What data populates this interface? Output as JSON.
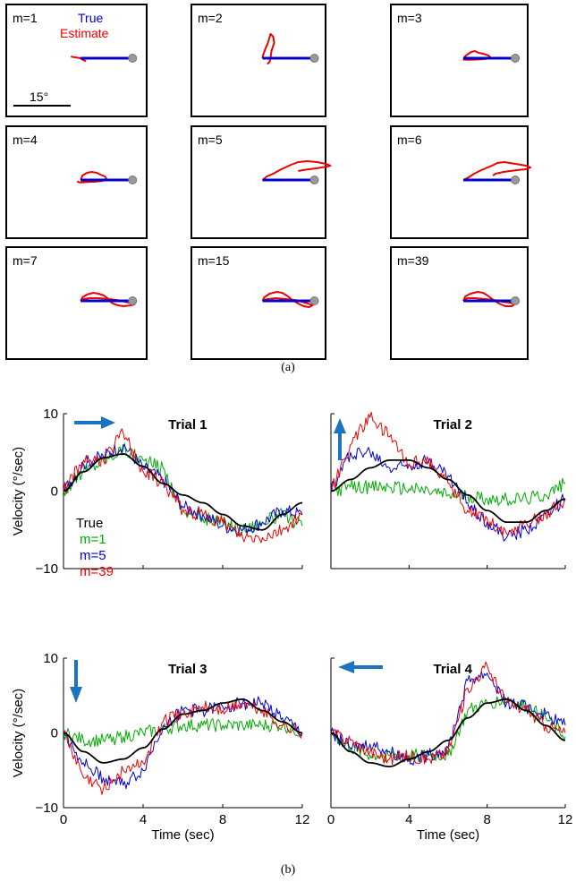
{
  "figure": {
    "caption_a": "(a)",
    "caption_b": "(b)"
  },
  "chart_data": [
    {
      "type": "line",
      "panel": "a",
      "description_legend": {
        "true_label": "True",
        "estimate_label": "Estimate"
      },
      "scale_label": "15°",
      "colors": {
        "true": "#0000cc",
        "estimate": "#ee0000",
        "marker": "#999999"
      },
      "subplots": [
        {
          "label": "m=1",
          "estimate": [
            [
              -11,
              -1.8
            ],
            [
              0,
              0
            ],
            [
              1,
              1
            ],
            [
              6,
              3.4
            ]
          ]
        },
        {
          "label": "m=2",
          "estimate": [
            [
              0,
              0
            ],
            [
              0.5,
              -3
            ],
            [
              3,
              -10
            ],
            [
              6,
              -17
            ],
            [
              9,
              -27
            ],
            [
              12,
              -24
            ],
            [
              13,
              -17
            ],
            [
              10,
              -8
            ],
            [
              9,
              -1
            ],
            [
              8,
              4
            ],
            [
              5.5,
              6.5
            ]
          ]
        },
        {
          "label": "m=3",
          "estimate": [
            [
              0,
              0
            ],
            [
              4,
              -4
            ],
            [
              9,
              -7
            ],
            [
              13,
              -8
            ],
            [
              17,
              -6
            ],
            [
              22,
              -5
            ],
            [
              28,
              -3
            ],
            [
              30,
              -1
            ],
            [
              25,
              0.8
            ],
            [
              17,
              1.4
            ],
            [
              6,
              1.8
            ],
            [
              -0.5,
              1.5
            ]
          ]
        },
        {
          "label": "m=4",
          "estimate": [
            [
              0,
              0
            ],
            [
              2,
              -5
            ],
            [
              7,
              -8
            ],
            [
              12,
              -9
            ],
            [
              18,
              -8
            ],
            [
              22,
              -6
            ],
            [
              27,
              -4
            ],
            [
              29,
              -1
            ],
            [
              26,
              0.5
            ],
            [
              22,
              1.4
            ],
            [
              14,
              2
            ],
            [
              6,
              2.4
            ],
            [
              -1,
              2.8
            ],
            [
              -4,
              1.6
            ]
          ]
        },
        {
          "label": "m=5",
          "estimate": [
            [
              0,
              0
            ],
            [
              5,
              -4
            ],
            [
              12,
              -7
            ],
            [
              21,
              -12
            ],
            [
              32,
              -17
            ],
            [
              40,
              -20
            ],
            [
              50,
              -21
            ],
            [
              61,
              -20
            ],
            [
              71,
              -18
            ],
            [
              76,
              -16
            ],
            [
              72,
              -15
            ],
            [
              60,
              -13
            ],
            [
              52,
              -12
            ],
            [
              45,
              -11
            ],
            [
              40,
              -10
            ]
          ]
        },
        {
          "label": "m=6",
          "estimate": [
            [
              0,
              0
            ],
            [
              6,
              -3
            ],
            [
              12,
              -7
            ],
            [
              20,
              -11
            ],
            [
              32,
              -16
            ],
            [
              38,
              -19
            ],
            [
              46,
              -20
            ],
            [
              58,
              -18
            ],
            [
              70,
              -16
            ],
            [
              75,
              -14
            ],
            [
              70,
              -12
            ],
            [
              60,
              -11
            ],
            [
              52,
              -10
            ],
            [
              45,
              -9
            ],
            [
              36,
              -7
            ],
            [
              33,
              -5
            ]
          ]
        },
        {
          "label": "m=7",
          "estimate": [
            [
              0,
              0
            ],
            [
              2,
              -4
            ],
            [
              7,
              -7
            ],
            [
              14,
              -9
            ],
            [
              20,
              -8
            ],
            [
              26,
              -6
            ],
            [
              30,
              -3
            ],
            [
              32,
              0
            ],
            [
              36,
              3
            ],
            [
              42,
              5
            ],
            [
              48,
              6
            ],
            [
              56,
              5
            ],
            [
              60,
              4
            ],
            [
              54,
              2
            ],
            [
              48,
              0.5
            ],
            [
              40,
              -1
            ],
            [
              32,
              -2
            ],
            [
              20,
              -3
            ],
            [
              10,
              -3
            ],
            [
              3,
              -2
            ],
            [
              0,
              0
            ]
          ]
        },
        {
          "label": "m=15",
          "estimate": [
            [
              0,
              0
            ],
            [
              2,
              -4
            ],
            [
              8,
              -8
            ],
            [
              16,
              -10
            ],
            [
              22,
              -9
            ],
            [
              27,
              -6
            ],
            [
              31,
              -3
            ],
            [
              35,
              0
            ],
            [
              40,
              3
            ],
            [
              46,
              6
            ],
            [
              52,
              7
            ],
            [
              56,
              5
            ],
            [
              51,
              3
            ],
            [
              44,
              1
            ],
            [
              36,
              -1
            ],
            [
              26,
              -2
            ],
            [
              15,
              -3
            ],
            [
              6,
              -2
            ],
            [
              1,
              -1
            ]
          ]
        },
        {
          "label": "m=39",
          "estimate": [
            [
              0,
              0
            ],
            [
              2,
              -5
            ],
            [
              8,
              -8
            ],
            [
              16,
              -10
            ],
            [
              22,
              -9
            ],
            [
              27,
              -6
            ],
            [
              31,
              -3
            ],
            [
              35,
              0
            ],
            [
              40,
              3
            ],
            [
              47,
              6
            ],
            [
              54,
              6
            ],
            [
              57,
              4
            ],
            [
              52,
              2
            ],
            [
              44,
              1
            ],
            [
              34,
              -1
            ],
            [
              24,
              -2
            ],
            [
              13,
              -3
            ],
            [
              5,
              -3
            ],
            [
              1,
              -2
            ]
          ]
        }
      ]
    },
    {
      "type": "line",
      "panel": "b",
      "ylabel": "Velocity  (°/sec)",
      "xlabel": "Time (sec)",
      "xlim": [
        0,
        12
      ],
      "ylim": [
        -10,
        10
      ],
      "xticks": [
        "0",
        "4",
        "8",
        "12"
      ],
      "yticks": [
        "10",
        "0",
        "−10"
      ],
      "legend": [
        {
          "name": "True",
          "color": "#000000"
        },
        {
          "name": "m=1",
          "color": "#00aa00"
        },
        {
          "name": "m=5",
          "color": "#0000dd"
        },
        {
          "name": "m=39",
          "color": "#ee0000"
        }
      ],
      "colors": {
        "arrow": "#1b73c4"
      },
      "subplots": [
        {
          "title": "Trial 1",
          "arrow": "right",
          "x": [
            0,
            1,
            2,
            3,
            4,
            5,
            6,
            7,
            8,
            9,
            10,
            11,
            12
          ],
          "series": [
            {
              "name": "True",
              "values": [
                0,
                2.5,
                4.3,
                4.8,
                3.2,
                1,
                -0.5,
                -1.5,
                -3,
                -4.5,
                -5,
                -3,
                -1.5
              ]
            },
            {
              "name": "m=1",
              "values": [
                0,
                2.5,
                4,
                5.5,
                4,
                3,
                -2.5,
                -3.5,
                -4,
                -5,
                -4,
                -3,
                -4.5
              ]
            },
            {
              "name": "m=5",
              "values": [
                0,
                3.5,
                4.5,
                6,
                3,
                1.5,
                -2,
                -3,
                -4.5,
                -5,
                -4,
                -2.5,
                -3
              ]
            },
            {
              "name": "m=39",
              "values": [
                0,
                4,
                4,
                7.5,
                2.5,
                1,
                -2.5,
                -3,
                -4,
                -6,
                -6,
                -5,
                -3
              ]
            }
          ]
        },
        {
          "title": "Trial 2",
          "arrow": "up",
          "x": [
            0,
            1,
            2,
            3,
            4,
            5,
            6,
            7,
            8,
            9,
            10,
            11,
            12
          ],
          "series": [
            {
              "name": "True",
              "values": [
                0,
                1.5,
                3,
                4,
                4,
                3,
                1.5,
                -0.5,
                -2.5,
                -4,
                -4,
                -2.5,
                -1
              ]
            },
            {
              "name": "m=1",
              "values": [
                0,
                0.5,
                0.5,
                0.5,
                0.3,
                0,
                -0.5,
                -0.5,
                -1,
                -1,
                -1,
                -0.5,
                1
              ]
            },
            {
              "name": "m=5",
              "values": [
                0,
                5,
                5,
                3,
                3.5,
                4,
                2,
                -1.5,
                -4,
                -6,
                -5,
                -3,
                -1
              ]
            },
            {
              "name": "m=39",
              "values": [
                0,
                6,
                9.5,
                7,
                3.5,
                4,
                1,
                -2.5,
                -3.5,
                -5.5,
                -4,
                -3,
                -1
              ]
            }
          ]
        },
        {
          "title": "Trial 3",
          "arrow": "down",
          "x": [
            0,
            1,
            2,
            3,
            4,
            5,
            6,
            7,
            8,
            9,
            10,
            11,
            12
          ],
          "series": [
            {
              "name": "True",
              "values": [
                0,
                -2.5,
                -4,
                -3.5,
                -2,
                0.5,
                2.5,
                3,
                4,
                4.5,
                3,
                1.5,
                0
              ]
            },
            {
              "name": "m=1",
              "values": [
                0,
                -1,
                -1,
                -0.5,
                0,
                0.5,
                1,
                1,
                1,
                1,
                1,
                1,
                0
              ]
            },
            {
              "name": "m=5",
              "values": [
                0,
                -4,
                -6,
                -7,
                -5,
                1,
                3,
                3,
                3.5,
                4,
                4,
                2,
                0
              ]
            },
            {
              "name": "m=39",
              "values": [
                0,
                -6,
                -7.5,
                -5,
                -4,
                1.5,
                2.5,
                3.5,
                3,
                4,
                3,
                1,
                0
              ]
            }
          ]
        },
        {
          "title": "Trial 4",
          "arrow": "left",
          "x": [
            0,
            1,
            2,
            3,
            4,
            5,
            6,
            7,
            8,
            9,
            10,
            11,
            12
          ],
          "series": [
            {
              "name": "True",
              "values": [
                0,
                -2.5,
                -4,
                -4.5,
                -3.5,
                -2.5,
                -1,
                2,
                4,
                4.5,
                3,
                1,
                -1
              ]
            },
            {
              "name": "m=1",
              "values": [
                0,
                -2,
                -3,
                -3,
                -3,
                -3,
                -3,
                3,
                4,
                4.5,
                3.5,
                2,
                -0.5
              ]
            },
            {
              "name": "m=5",
              "values": [
                0,
                -2,
                -1.5,
                -2.5,
                -3.5,
                -3,
                -2,
                7,
                8,
                4,
                3.5,
                2.5,
                1
              ]
            },
            {
              "name": "m=39",
              "values": [
                0,
                -1,
                -2.5,
                -3.5,
                -3,
                -3.5,
                -2.5,
                6,
                9,
                4,
                3,
                1,
                0
              ]
            }
          ]
        }
      ]
    }
  ]
}
